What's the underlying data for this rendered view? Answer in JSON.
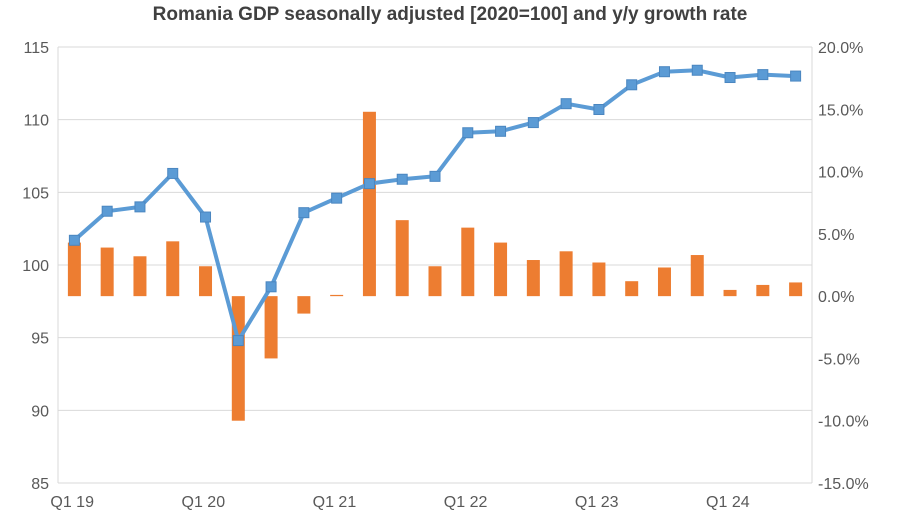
{
  "chart_data": {
    "type": "bar+line",
    "title": "Romania GDP seasonally adjusted [2020=100] and y/y growth rate",
    "categories": [
      "Q1 19",
      "Q2 19",
      "Q3 19",
      "Q4 19",
      "Q1 20",
      "Q2 20",
      "Q3 20",
      "Q4 20",
      "Q1 21",
      "Q2 21",
      "Q3 21",
      "Q4 21",
      "Q1 22",
      "Q2 22",
      "Q3 22",
      "Q4 22",
      "Q1 23",
      "Q2 23",
      "Q3 23",
      "Q4 23",
      "Q1 24",
      "Q2 24",
      "Q3 24"
    ],
    "x_tick_labels": [
      "Q1 19",
      "Q1 20",
      "Q1 21",
      "Q1 22",
      "Q1 23",
      "Q1 24"
    ],
    "series": [
      {
        "name": "GDP seasonally adjusted [2020=100]",
        "type": "line",
        "axis": "left",
        "color": "#5B9BD5",
        "values": [
          101.7,
          103.7,
          104.0,
          106.3,
          103.3,
          94.8,
          98.5,
          103.6,
          104.6,
          105.6,
          105.9,
          106.1,
          109.1,
          109.2,
          109.8,
          111.1,
          110.7,
          112.4,
          113.3,
          113.4,
          112.9,
          113.1,
          113.0
        ]
      },
      {
        "name": "y/y growth rate",
        "type": "bar",
        "axis": "right",
        "color": "#ED7D31",
        "values": [
          4.3,
          3.9,
          3.2,
          4.4,
          2.4,
          -10.0,
          -5.0,
          -1.4,
          0.1,
          14.8,
          6.1,
          2.4,
          5.5,
          4.3,
          2.9,
          3.6,
          2.7,
          1.2,
          2.3,
          3.3,
          0.5,
          0.9,
          1.1
        ]
      }
    ],
    "y_left": {
      "min": 85,
      "max": 115,
      "step": 5,
      "labels": [
        "85",
        "90",
        "95",
        "100",
        "105",
        "110",
        "115"
      ]
    },
    "y_right": {
      "min": -15,
      "max": 20,
      "step": 5,
      "labels": [
        "-15.0%",
        "-10.0%",
        "-5.0%",
        "0.0%",
        "5.0%",
        "10.0%",
        "15.0%",
        "20.0%"
      ]
    },
    "grid": true,
    "legend": "none"
  }
}
